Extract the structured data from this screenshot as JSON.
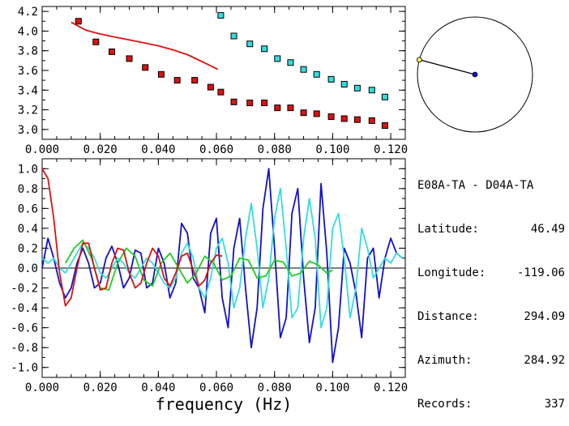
{
  "chart_data": [
    {
      "type": "scatter",
      "xlim": [
        0.0,
        0.125
      ],
      "ylim": [
        2.9,
        4.25
      ],
      "x_ticks": [
        "0.000",
        "0.020",
        "0.040",
        "0.060",
        "0.080",
        "0.100",
        "0.120"
      ],
      "y_ticks": [
        "3.0",
        "3.2",
        "3.4",
        "3.6",
        "3.8",
        "4.0",
        "4.2"
      ],
      "series": [
        {
          "marker": "square",
          "color": "#dd1111",
          "x": [
            0.0125,
            0.0185,
            0.024,
            0.03,
            0.0355,
            0.041,
            0.0465,
            0.0525,
            0.058,
            0.0615,
            0.066,
            0.0715,
            0.0765,
            0.081,
            0.0855,
            0.09,
            0.0945,
            0.0995,
            0.104,
            0.1085,
            0.1135,
            0.118
          ],
          "y": [
            4.1,
            3.89,
            3.79,
            3.72,
            3.63,
            3.56,
            3.5,
            3.5,
            3.43,
            3.38,
            3.28,
            3.27,
            3.27,
            3.22,
            3.22,
            3.17,
            3.16,
            3.13,
            3.11,
            3.1,
            3.09,
            3.04
          ]
        },
        {
          "marker": "square",
          "color": "#33dddd",
          "x": [
            0.0615,
            0.066,
            0.0715,
            0.0765,
            0.081,
            0.0855,
            0.09,
            0.0945,
            0.0995,
            0.104,
            0.1085,
            0.1135,
            0.118
          ],
          "y": [
            4.16,
            3.95,
            3.87,
            3.82,
            3.72,
            3.68,
            3.61,
            3.56,
            3.51,
            3.46,
            3.42,
            3.4,
            3.33
          ]
        },
        {
          "type": "line",
          "color": "#dd1111",
          "x": [
            0.01,
            0.015,
            0.02,
            0.025,
            0.03,
            0.035,
            0.04,
            0.045,
            0.05,
            0.055,
            0.0605
          ],
          "y": [
            4.09,
            4.01,
            3.97,
            3.94,
            3.91,
            3.88,
            3.85,
            3.81,
            3.76,
            3.69,
            3.61
          ]
        }
      ]
    },
    {
      "type": "line",
      "xlim": [
        0.0,
        0.125
      ],
      "ylim": [
        -1.1,
        1.1
      ],
      "x_ticks": [
        "0.000",
        "0.020",
        "0.040",
        "0.060",
        "0.080",
        "0.100",
        "0.120"
      ],
      "y_ticks": [
        "1.0",
        "0.8",
        "0.6",
        "0.4",
        "0.2",
        "0.0",
        "-0.2",
        "-0.4",
        "-0.6",
        "-0.8",
        "-1.0"
      ],
      "xlabel": "frequency (Hz)",
      "series": [
        {
          "color": "#1111cc",
          "x": [
            0.0,
            0.002,
            0.004,
            0.006,
            0.008,
            0.01,
            0.012,
            0.014,
            0.016,
            0.018,
            0.02,
            0.022,
            0.024,
            0.026,
            0.028,
            0.03,
            0.032,
            0.034,
            0.036,
            0.038,
            0.04,
            0.042,
            0.044,
            0.046,
            0.048,
            0.05,
            0.052,
            0.054,
            0.056,
            0.058,
            0.06,
            0.062,
            0.064,
            0.066,
            0.068,
            0.07,
            0.072,
            0.074,
            0.076,
            0.078,
            0.08,
            0.082,
            0.084,
            0.086,
            0.088,
            0.09,
            0.092,
            0.094,
            0.096,
            0.098,
            0.1,
            0.102,
            0.104,
            0.106,
            0.108,
            0.11,
            0.112,
            0.114,
            0.116,
            0.118,
            0.12,
            0.122,
            0.124
          ],
          "y": [
            0.0,
            0.3,
            0.1,
            -0.15,
            -0.3,
            -0.2,
            0.05,
            0.2,
            0.05,
            -0.2,
            -0.15,
            0.1,
            0.22,
            0.05,
            -0.2,
            -0.1,
            0.18,
            0.15,
            -0.2,
            -0.15,
            0.2,
            0.05,
            -0.3,
            -0.15,
            0.45,
            0.35,
            -0.1,
            -0.2,
            -0.45,
            0.35,
            0.5,
            -0.3,
            -0.6,
            0.2,
            0.5,
            -0.2,
            -0.8,
            -0.4,
            0.6,
            1.0,
            0.2,
            -0.7,
            -0.5,
            0.55,
            0.8,
            -0.1,
            -0.75,
            -0.4,
            0.85,
            0.15,
            -0.95,
            -0.6,
            0.2,
            0.05,
            -0.25,
            -0.7,
            0.1,
            0.2,
            -0.3,
            0.1,
            0.3,
            0.15,
            0.1
          ]
        },
        {
          "color": "#33dddd",
          "x": [
            0.0,
            0.002,
            0.004,
            0.006,
            0.008,
            0.01,
            0.012,
            0.014,
            0.016,
            0.018,
            0.02,
            0.022,
            0.024,
            0.026,
            0.028,
            0.03,
            0.032,
            0.034,
            0.036,
            0.038,
            0.04,
            0.042,
            0.044,
            0.046,
            0.048,
            0.05,
            0.052,
            0.054,
            0.056,
            0.058,
            0.06,
            0.062,
            0.064,
            0.066,
            0.068,
            0.07,
            0.072,
            0.074,
            0.076,
            0.078,
            0.08,
            0.082,
            0.084,
            0.086,
            0.088,
            0.09,
            0.092,
            0.094,
            0.096,
            0.098,
            0.1,
            0.102,
            0.104,
            0.106,
            0.108,
            0.11,
            0.112,
            0.114,
            0.116,
            0.118,
            0.12,
            0.122,
            0.124
          ],
          "y": [
            0.1,
            0.05,
            0.1,
            0.0,
            -0.05,
            0.05,
            0.15,
            0.25,
            0.2,
            0.1,
            -0.05,
            -0.1,
            0.0,
            0.1,
            0.05,
            -0.05,
            -0.1,
            0.0,
            0.1,
            0.05,
            -0.05,
            -0.15,
            -0.2,
            -0.1,
            0.15,
            0.25,
            0.1,
            -0.2,
            -0.3,
            -0.1,
            0.2,
            0.3,
            0.05,
            -0.4,
            -0.2,
            0.3,
            0.65,
            0.2,
            -0.4,
            -0.1,
            0.5,
            0.8,
            0.2,
            -0.5,
            -0.4,
            0.3,
            0.7,
            0.3,
            -0.6,
            -0.4,
            0.4,
            0.55,
            0.1,
            -0.5,
            -0.2,
            0.4,
            0.2,
            -0.1,
            0.0,
            0.1,
            0.05,
            0.15,
            0.1
          ]
        },
        {
          "color": "#22cc22",
          "x": [
            0.008,
            0.011,
            0.014,
            0.017,
            0.02,
            0.023,
            0.026,
            0.029,
            0.032,
            0.035,
            0.038,
            0.041,
            0.044,
            0.047,
            0.05,
            0.053,
            0.056,
            0.059,
            0.062,
            0.065,
            0.068,
            0.071,
            0.074,
            0.077,
            0.08,
            0.083,
            0.086,
            0.089,
            0.092,
            0.095,
            0.098,
            0.1
          ],
          "y": [
            0.05,
            0.2,
            0.28,
            0.1,
            -0.2,
            -0.22,
            0.05,
            0.2,
            0.12,
            -0.12,
            -0.18,
            0.05,
            0.15,
            0.0,
            -0.15,
            -0.05,
            0.12,
            0.05,
            -0.12,
            -0.08,
            0.1,
            0.08,
            -0.1,
            -0.08,
            0.08,
            0.06,
            -0.08,
            -0.05,
            0.07,
            0.03,
            -0.05,
            -0.02
          ]
        },
        {
          "color": "#dd1111",
          "x": [
            0.0,
            0.002,
            0.004,
            0.006,
            0.008,
            0.01,
            0.012,
            0.014,
            0.016,
            0.018,
            0.02,
            0.022,
            0.024,
            0.026,
            0.028,
            0.03,
            0.032,
            0.034,
            0.036,
            0.038,
            0.04,
            0.042,
            0.044,
            0.046,
            0.048,
            0.05,
            0.052,
            0.054,
            0.056,
            0.058,
            0.06,
            0.062
          ],
          "y": [
            1.0,
            0.9,
            0.5,
            -0.05,
            -0.38,
            -0.3,
            0.0,
            0.25,
            0.25,
            0.0,
            -0.22,
            -0.2,
            0.05,
            0.2,
            0.18,
            -0.05,
            -0.2,
            -0.15,
            0.05,
            0.2,
            0.12,
            -0.1,
            -0.18,
            -0.05,
            0.12,
            0.15,
            -0.02,
            -0.18,
            -0.12,
            0.05,
            0.13,
            0.12
          ]
        }
      ]
    }
  ],
  "compass": {
    "azimuth_deg": 284.92
  },
  "info": {
    "title": "E08A-TA - D04A-TA",
    "rows": [
      {
        "label": "Latitude:",
        "value": "46.49"
      },
      {
        "label": "Longitude:",
        "value": "-119.06"
      },
      {
        "label": "Distance:",
        "value": "294.09"
      },
      {
        "label": "Azimuth:",
        "value": "284.92"
      },
      {
        "label": "Records:",
        "value": "337"
      }
    ]
  }
}
